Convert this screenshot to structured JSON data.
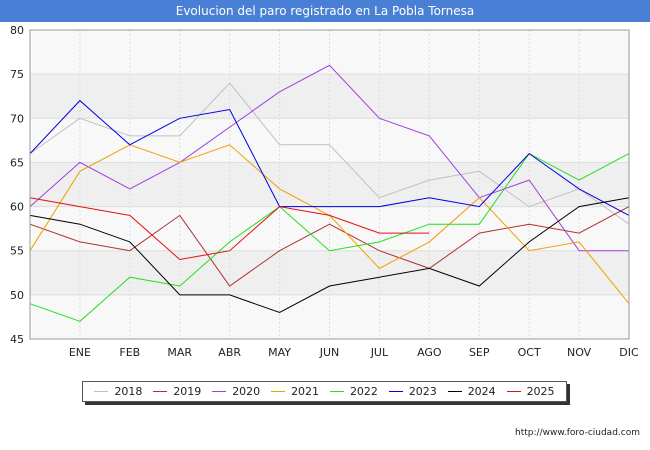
{
  "title": "Evolucion del paro registrado en La Pobla Tornesa",
  "source": "http://www.foro-ciudad.com",
  "chart_data": {
    "type": "line",
    "title": "Evolucion del paro registrado en La Pobla Tornesa",
    "xlabel": "",
    "ylabel": "",
    "ylim": [
      45,
      80
    ],
    "yticks": [
      45,
      50,
      55,
      60,
      65,
      70,
      75,
      80
    ],
    "categories": [
      "DIC_prev",
      "ENE",
      "FEB",
      "MAR",
      "ABR",
      "MAY",
      "JUN",
      "JUL",
      "AGO",
      "SEP",
      "OCT",
      "NOV",
      "DIC"
    ],
    "tick_labels": [
      "",
      "ENE",
      "FEB",
      "MAR",
      "ABR",
      "MAY",
      "JUN",
      "JUL",
      "AGO",
      "SEP",
      "OCT",
      "NOV",
      "DIC"
    ],
    "grid": true,
    "legend": "bottom",
    "series": [
      {
        "name": "2018",
        "color": "#c0c0c0",
        "values": [
          66,
          70,
          68,
          68,
          74,
          67,
          67,
          61,
          63,
          64,
          60,
          62,
          58
        ]
      },
      {
        "name": "2019",
        "color": "#b03030",
        "values": [
          58,
          56,
          55,
          59,
          51,
          55,
          58,
          55,
          53,
          57,
          58,
          57,
          60
        ]
      },
      {
        "name": "2020",
        "color": "#a040e0",
        "values": [
          60,
          65,
          62,
          65,
          69,
          73,
          76,
          70,
          68,
          61,
          63,
          55,
          55
        ]
      },
      {
        "name": "2021",
        "color": "#f0a000",
        "values": [
          55,
          64,
          67,
          65,
          67,
          62,
          59,
          53,
          56,
          61,
          55,
          56,
          49
        ]
      },
      {
        "name": "2022",
        "color": "#20e020",
        "values": [
          49,
          47,
          52,
          51,
          56,
          60,
          55,
          56,
          58,
          58,
          66,
          63,
          66
        ]
      },
      {
        "name": "2023",
        "color": "#0000e0",
        "values": [
          66,
          72,
          67,
          70,
          71,
          60,
          60,
          60,
          61,
          60,
          66,
          62,
          59
        ]
      },
      {
        "name": "2024",
        "color": "#000000",
        "values": [
          59,
          58,
          56,
          50,
          50,
          48,
          51,
          52,
          53,
          51,
          56,
          60,
          61
        ]
      },
      {
        "name": "2025",
        "color": "#e01010",
        "values": [
          61,
          60,
          59,
          54,
          55,
          60,
          59,
          57,
          57,
          null,
          null,
          null,
          null
        ]
      }
    ]
  }
}
